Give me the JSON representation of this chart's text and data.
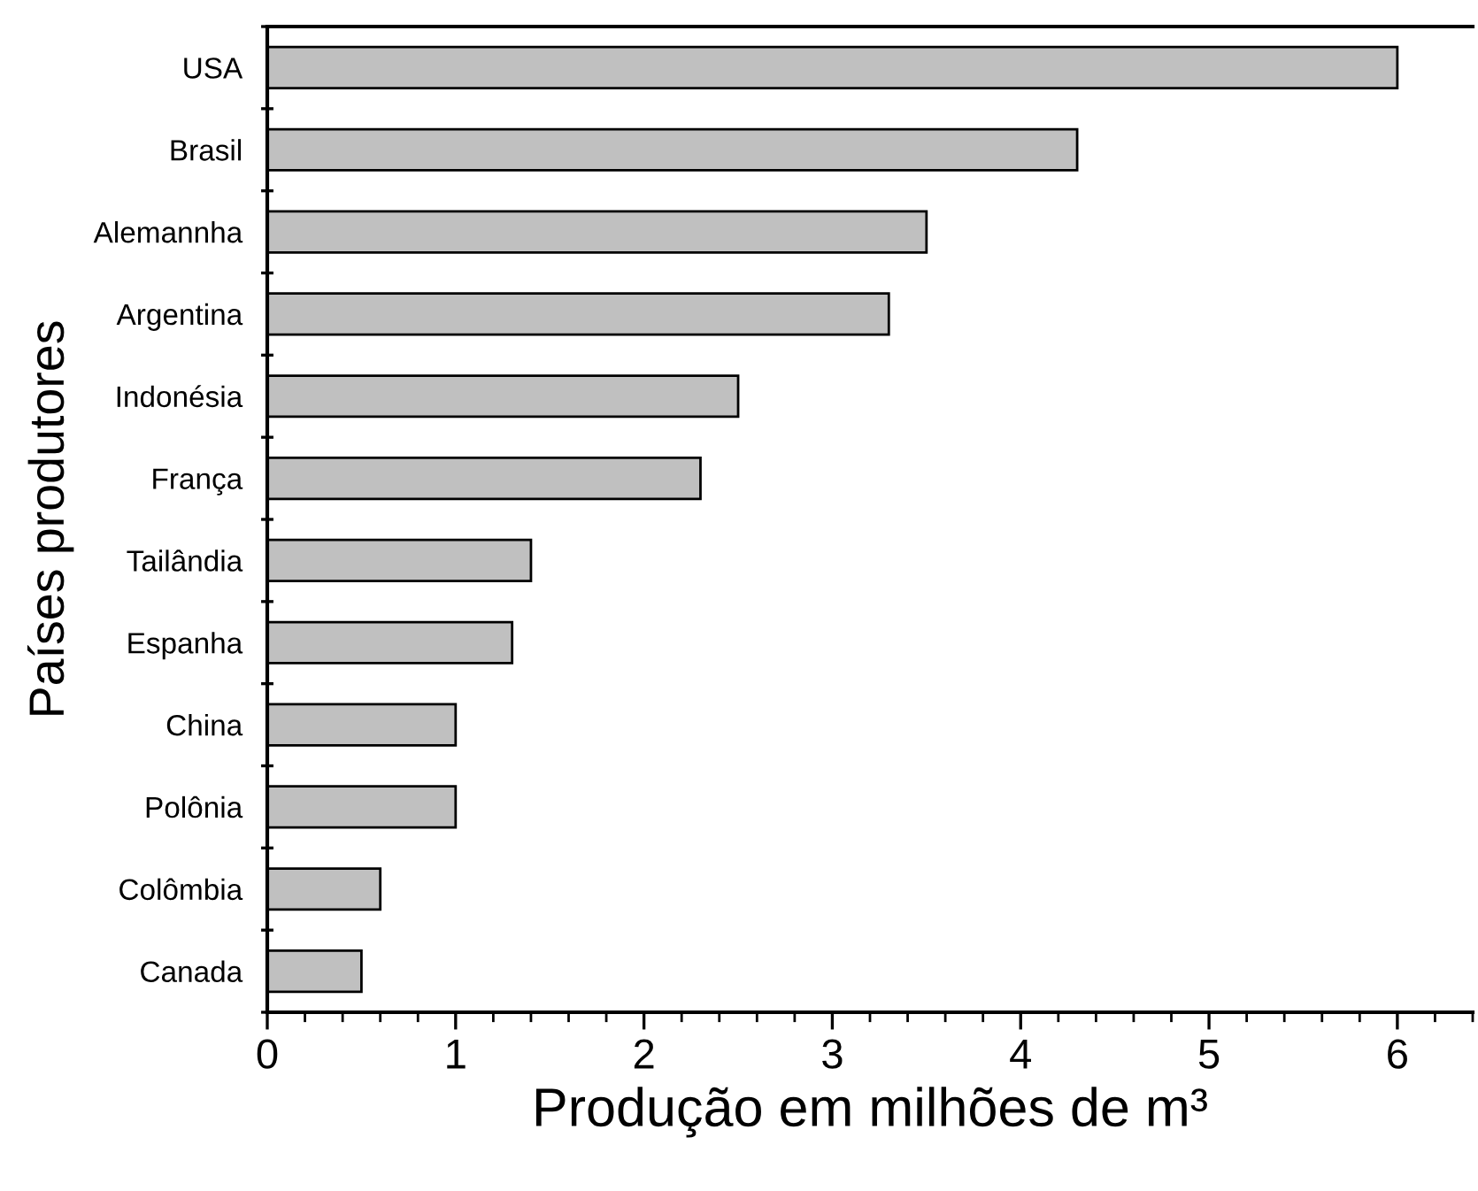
{
  "chart_data": {
    "type": "bar",
    "orientation": "horizontal",
    "categories": [
      "USA",
      "Brasil",
      "Alemannha",
      "Argentina",
      "Indonésia",
      "França",
      "Tailândia",
      "Espanha",
      "China",
      "Polônia",
      "Colômbia",
      "Canada"
    ],
    "values": [
      6.0,
      4.3,
      3.5,
      3.3,
      2.5,
      2.3,
      1.4,
      1.3,
      1.0,
      1.0,
      0.6,
      0.5
    ],
    "color": "#c0c0c0",
    "xlim": [
      0,
      6.4
    ],
    "xticks": [
      0,
      1,
      2,
      3,
      4,
      5,
      6
    ],
    "xlabel": "Produção em milhões de m³",
    "ylabel": "Países produtores",
    "grid": false,
    "legend": false
  }
}
